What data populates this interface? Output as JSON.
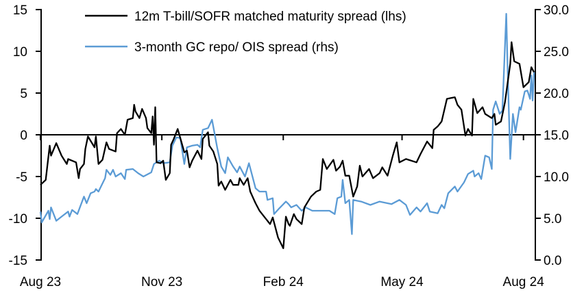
{
  "chart_data": {
    "type": "line",
    "title": "",
    "xlabel": "",
    "ylabel_left": "",
    "ylabel_right": "",
    "xlim": [
      "2023-08-01",
      "2024-08-10"
    ],
    "ylim_left": [
      -15,
      15
    ],
    "ylim_right": [
      0,
      30
    ],
    "x_ticks": [
      {
        "date": "2023-08-01",
        "label": "Aug 23"
      },
      {
        "date": "2023-11-01",
        "label": "Nov 23"
      },
      {
        "date": "2024-02-01",
        "label": "Feb 24"
      },
      {
        "date": "2024-05-01",
        "label": "May 24"
      },
      {
        "date": "2024-08-01",
        "label": "Aug 24"
      }
    ],
    "y_ticks_left": [
      "15",
      "10",
      "5",
      "0",
      "-5",
      "-10",
      "-15"
    ],
    "y_ticks_right": [
      "30.0",
      "25.0",
      "20.0",
      "15.0",
      "10.0",
      "5.0",
      "0.0"
    ],
    "grid": false,
    "legend_placement": "top",
    "series": [
      {
        "name": "12m T-bill/SOFR matched maturity spread (lhs)",
        "axis": "left",
        "color": "#000000",
        "points": [
          [
            "2023-08-01",
            -6.0
          ],
          [
            "2023-08-05",
            -5.4
          ],
          [
            "2023-08-08",
            -1.3
          ],
          [
            "2023-08-09",
            -2.5
          ],
          [
            "2023-08-13",
            -1.0
          ],
          [
            "2023-08-17",
            -2.5
          ],
          [
            "2023-08-21",
            -3.5
          ],
          [
            "2023-08-22",
            -2.9
          ],
          [
            "2023-08-28",
            -3.3
          ],
          [
            "2023-08-30",
            -5.2
          ],
          [
            "2023-08-31",
            -4.1
          ],
          [
            "2023-09-03",
            -3.5
          ],
          [
            "2023-09-04",
            -1.7
          ],
          [
            "2023-09-06",
            -0.2
          ],
          [
            "2023-09-11",
            -1.5
          ],
          [
            "2023-09-12",
            -0.2
          ],
          [
            "2023-09-14",
            -3.5
          ],
          [
            "2023-09-17",
            -3.0
          ],
          [
            "2023-09-20",
            -0.9
          ],
          [
            "2023-09-22",
            -1.7
          ],
          [
            "2023-09-27",
            -2.0
          ],
          [
            "2023-09-28",
            0.2
          ],
          [
            "2023-10-01",
            0.7
          ],
          [
            "2023-10-04",
            0.0
          ],
          [
            "2023-10-06",
            1.8
          ],
          [
            "2023-10-10",
            2.0
          ],
          [
            "2023-10-11",
            3.6
          ],
          [
            "2023-10-12",
            2.8
          ],
          [
            "2023-10-15",
            2.0
          ],
          [
            "2023-10-17",
            3.1
          ],
          [
            "2023-10-20",
            2.0
          ],
          [
            "2023-10-21",
            0.8
          ],
          [
            "2023-10-24",
            0.2
          ],
          [
            "2023-10-25",
            2.2
          ],
          [
            "2023-10-26",
            -1.2
          ],
          [
            "2023-10-27",
            3.3
          ],
          [
            "2023-10-28",
            -3.3
          ],
          [
            "2023-10-31",
            -3.4
          ],
          [
            "2023-11-02",
            -3.1
          ],
          [
            "2023-11-04",
            -5.4
          ],
          [
            "2023-11-07",
            -4.6
          ],
          [
            "2023-11-08",
            -1.2
          ],
          [
            "2023-11-10",
            -0.5
          ],
          [
            "2023-11-13",
            0.7
          ],
          [
            "2023-11-15",
            -0.4
          ],
          [
            "2023-11-18",
            -2.1
          ],
          [
            "2023-11-20",
            -1.9
          ],
          [
            "2023-11-22",
            -3.9
          ],
          [
            "2023-11-24",
            -3.1
          ],
          [
            "2023-11-28",
            -1.9
          ],
          [
            "2023-12-01",
            -2.9
          ],
          [
            "2023-12-02",
            -0.5
          ],
          [
            "2023-12-06",
            0.3
          ],
          [
            "2023-12-07",
            -1.3
          ],
          [
            "2023-12-10",
            -2.0
          ],
          [
            "2023-12-13",
            -3.5
          ],
          [
            "2023-12-14",
            -6.1
          ],
          [
            "2023-12-16",
            -5.6
          ],
          [
            "2023-12-19",
            -6.6
          ],
          [
            "2023-12-23",
            -5.4
          ],
          [
            "2023-12-25",
            -6.0
          ],
          [
            "2023-12-29",
            -6.0
          ],
          [
            "2023-12-30",
            -5.2
          ],
          [
            "2024-01-02",
            -6.0
          ],
          [
            "2024-01-05",
            -5.2
          ],
          [
            "2024-01-07",
            -6.8
          ],
          [
            "2024-01-11",
            -8.2
          ],
          [
            "2024-01-14",
            -9.1
          ],
          [
            "2024-01-19",
            -10.1
          ],
          [
            "2024-01-22",
            -10.7
          ],
          [
            "2024-01-24",
            -9.9
          ],
          [
            "2024-01-28",
            -12.3
          ],
          [
            "2024-02-01",
            -13.6
          ],
          [
            "2024-02-03",
            -9.8
          ],
          [
            "2024-02-05",
            -10.7
          ],
          [
            "2024-02-06",
            -10.9
          ],
          [
            "2024-02-09",
            -9.5
          ],
          [
            "2024-02-11",
            -10.1
          ],
          [
            "2024-02-15",
            -10.7
          ],
          [
            "2024-02-17",
            -8.7
          ],
          [
            "2024-02-22",
            -7.4
          ],
          [
            "2024-02-26",
            -6.8
          ],
          [
            "2024-02-29",
            -6.6
          ],
          [
            "2024-03-02",
            -2.9
          ],
          [
            "2024-03-05",
            -4.1
          ],
          [
            "2024-03-10",
            -3.0
          ],
          [
            "2024-03-12",
            -4.3
          ],
          [
            "2024-03-15",
            -3.8
          ],
          [
            "2024-03-17",
            -3.1
          ],
          [
            "2024-03-19",
            -4.9
          ],
          [
            "2024-03-22",
            -4.9
          ],
          [
            "2024-03-25",
            -7.4
          ],
          [
            "2024-03-28",
            -6.2
          ],
          [
            "2024-03-30",
            -3.7
          ],
          [
            "2024-04-01",
            -5.0
          ],
          [
            "2024-04-06",
            -4.1
          ],
          [
            "2024-04-09",
            -5.2
          ],
          [
            "2024-04-14",
            -4.6
          ],
          [
            "2024-04-16",
            -3.9
          ],
          [
            "2024-04-20",
            -4.9
          ],
          [
            "2024-04-24",
            -2.5
          ],
          [
            "2024-04-27",
            -0.9
          ],
          [
            "2024-04-29",
            -3.3
          ],
          [
            "2024-05-04",
            -2.9
          ],
          [
            "2024-05-12",
            -3.3
          ],
          [
            "2024-05-15",
            -2.3
          ],
          [
            "2024-05-20",
            -0.8
          ],
          [
            "2024-05-24",
            -1.6
          ],
          [
            "2024-05-25",
            0.6
          ],
          [
            "2024-05-28",
            1.0
          ],
          [
            "2024-05-31",
            1.6
          ],
          [
            "2024-06-04",
            4.3
          ],
          [
            "2024-06-07",
            4.4
          ],
          [
            "2024-06-10",
            4.5
          ],
          [
            "2024-06-12",
            3.6
          ],
          [
            "2024-06-15",
            3.0
          ],
          [
            "2024-06-18",
            -0.1
          ],
          [
            "2024-06-20",
            0.7
          ],
          [
            "2024-06-23",
            -0.1
          ],
          [
            "2024-06-24",
            4.3
          ],
          [
            "2024-06-27",
            2.6
          ],
          [
            "2024-07-01",
            3.3
          ],
          [
            "2024-07-03",
            2.5
          ],
          [
            "2024-07-08",
            2.0
          ],
          [
            "2024-07-10",
            2.5
          ],
          [
            "2024-07-11",
            1.2
          ],
          [
            "2024-07-15",
            1.6
          ],
          [
            "2024-07-18",
            3.9
          ],
          [
            "2024-07-22",
            8.5
          ],
          [
            "2024-07-23",
            11.1
          ],
          [
            "2024-07-25",
            8.8
          ],
          [
            "2024-07-29",
            8.5
          ],
          [
            "2024-08-01",
            5.7
          ],
          [
            "2024-08-05",
            6.3
          ],
          [
            "2024-08-07",
            8.1
          ],
          [
            "2024-08-09",
            7.5
          ]
        ]
      },
      {
        "name": "3-month GC repo/ OIS spread (rhs)",
        "axis": "right",
        "color": "#5B9BD5",
        "points": [
          [
            "2023-08-01",
            5.8
          ],
          [
            "2023-08-02",
            4.5
          ],
          [
            "2023-08-07",
            5.9
          ],
          [
            "2023-08-08",
            4.9
          ],
          [
            "2023-08-09",
            6.3
          ],
          [
            "2023-08-13",
            4.7
          ],
          [
            "2023-08-17",
            5.2
          ],
          [
            "2023-08-22",
            5.8
          ],
          [
            "2023-08-23",
            5.2
          ],
          [
            "2023-08-25",
            6.0
          ],
          [
            "2023-08-29",
            5.5
          ],
          [
            "2023-09-03",
            7.6
          ],
          [
            "2023-09-05",
            6.8
          ],
          [
            "2023-09-08",
            8.0
          ],
          [
            "2023-09-11",
            8.2
          ],
          [
            "2023-09-12",
            8.5
          ],
          [
            "2023-09-14",
            8.2
          ],
          [
            "2023-09-19",
            9.8
          ],
          [
            "2023-09-20",
            10.8
          ],
          [
            "2023-09-23",
            10.2
          ],
          [
            "2023-09-25",
            10.8
          ],
          [
            "2023-09-27",
            10.0
          ],
          [
            "2023-10-01",
            10.4
          ],
          [
            "2023-10-04",
            9.7
          ],
          [
            "2023-10-05",
            10.8
          ],
          [
            "2023-10-10",
            10.9
          ],
          [
            "2023-10-14",
            10.4
          ],
          [
            "2023-10-18",
            10.0
          ],
          [
            "2023-10-24",
            10.5
          ],
          [
            "2023-10-26",
            11.5
          ],
          [
            "2023-10-30",
            11.9
          ],
          [
            "2023-11-02",
            11.6
          ],
          [
            "2023-11-07",
            11.7
          ],
          [
            "2023-11-09",
            13.7
          ],
          [
            "2023-11-12",
            14.7
          ],
          [
            "2023-11-15",
            14.6
          ],
          [
            "2023-11-18",
            11.5
          ],
          [
            "2023-11-20",
            13.5
          ],
          [
            "2023-11-24",
            13.7
          ],
          [
            "2023-11-28",
            13.8
          ],
          [
            "2023-11-30",
            13.5
          ],
          [
            "2023-12-02",
            15.6
          ],
          [
            "2023-12-06",
            15.8
          ],
          [
            "2023-12-09",
            16.8
          ],
          [
            "2023-12-13",
            13.4
          ],
          [
            "2023-12-16",
            11.2
          ],
          [
            "2023-12-19",
            10.4
          ],
          [
            "2023-12-21",
            12.3
          ],
          [
            "2023-12-25",
            11.2
          ],
          [
            "2023-12-28",
            10.5
          ],
          [
            "2023-12-30",
            11.2
          ],
          [
            "2024-01-03",
            10.0
          ],
          [
            "2024-01-06",
            11.6
          ],
          [
            "2024-01-11",
            8.6
          ],
          [
            "2024-01-14",
            8.2
          ],
          [
            "2024-01-19",
            8.2
          ],
          [
            "2024-01-20",
            7.2
          ],
          [
            "2024-01-24",
            7.4
          ],
          [
            "2024-01-25",
            5.5
          ],
          [
            "2024-01-29",
            6.2
          ],
          [
            "2024-02-03",
            7.0
          ],
          [
            "2024-02-05",
            6.7
          ],
          [
            "2024-02-07",
            6.3
          ],
          [
            "2024-02-11",
            6.6
          ],
          [
            "2024-02-15",
            5.9
          ],
          [
            "2024-02-18",
            6.3
          ],
          [
            "2024-02-23",
            5.9
          ],
          [
            "2024-03-01",
            5.9
          ],
          [
            "2024-03-07",
            5.9
          ],
          [
            "2024-03-11",
            5.5
          ],
          [
            "2024-03-13",
            7.4
          ],
          [
            "2024-03-16",
            7.6
          ],
          [
            "2024-03-17",
            9.6
          ],
          [
            "2024-03-19",
            6.8
          ],
          [
            "2024-03-22",
            7.2
          ],
          [
            "2024-03-24",
            3.1
          ],
          [
            "2024-03-25",
            7.2
          ],
          [
            "2024-03-31",
            7.0
          ],
          [
            "2024-04-07",
            6.6
          ],
          [
            "2024-04-14",
            7.0
          ],
          [
            "2024-04-23",
            6.7
          ],
          [
            "2024-04-29",
            7.2
          ],
          [
            "2024-05-04",
            6.6
          ],
          [
            "2024-05-07",
            5.4
          ],
          [
            "2024-05-12",
            6.3
          ],
          [
            "2024-05-15",
            5.8
          ],
          [
            "2024-05-20",
            6.8
          ],
          [
            "2024-05-22",
            5.8
          ],
          [
            "2024-05-28",
            5.6
          ],
          [
            "2024-05-31",
            6.6
          ],
          [
            "2024-06-02",
            6.2
          ],
          [
            "2024-06-05",
            8.0
          ],
          [
            "2024-06-10",
            8.8
          ],
          [
            "2024-06-12",
            8.2
          ],
          [
            "2024-06-17",
            9.3
          ],
          [
            "2024-06-20",
            10.3
          ],
          [
            "2024-06-24",
            10.7
          ],
          [
            "2024-06-25",
            10.0
          ],
          [
            "2024-06-28",
            10.4
          ],
          [
            "2024-06-30",
            9.7
          ],
          [
            "2024-07-03",
            12.5
          ],
          [
            "2024-07-06",
            12.3
          ],
          [
            "2024-07-08",
            10.9
          ],
          [
            "2024-07-09",
            18.0
          ],
          [
            "2024-07-11",
            19.0
          ],
          [
            "2024-07-14",
            17.5
          ],
          [
            "2024-07-16",
            17.9
          ],
          [
            "2024-07-19",
            29.5
          ],
          [
            "2024-07-20",
            22.8
          ],
          [
            "2024-07-22",
            12.1
          ],
          [
            "2024-07-24",
            17.5
          ],
          [
            "2024-07-26",
            15.3
          ],
          [
            "2024-07-29",
            18.3
          ],
          [
            "2024-07-30",
            18.0
          ],
          [
            "2024-08-02",
            20.2
          ],
          [
            "2024-08-04",
            20.3
          ],
          [
            "2024-08-06",
            19.3
          ],
          [
            "2024-08-07",
            22.1
          ],
          [
            "2024-08-08",
            19.1
          ],
          [
            "2024-08-09",
            22.5
          ]
        ]
      }
    ]
  }
}
